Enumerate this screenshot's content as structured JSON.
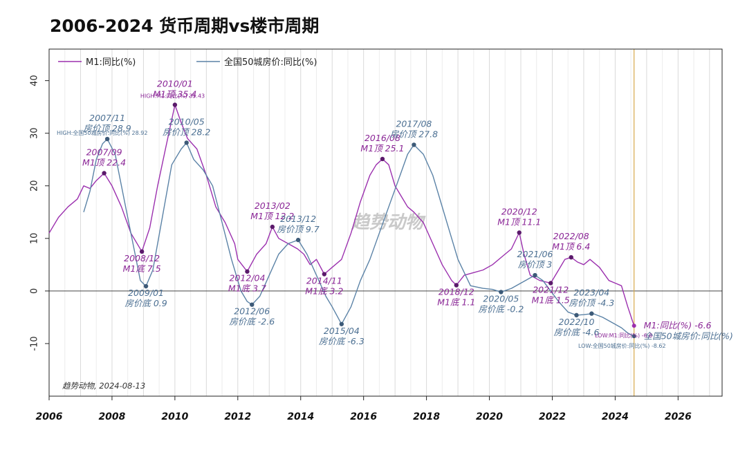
{
  "title": "2006-2024 货币周期vs楼市周期",
  "chart_data": {
    "type": "line",
    "title": "2006-2024 货币周期vs楼市周期",
    "xlim": [
      2006,
      2027.4
    ],
    "ylim": [
      -20,
      46
    ],
    "x_ticks": [
      "2006",
      "2008",
      "2010",
      "2012",
      "2014",
      "2016",
      "2018",
      "2020",
      "2022",
      "2024",
      "2026"
    ],
    "y_ticks": [
      "40",
      "30",
      "20",
      "10",
      "0",
      "-10"
    ],
    "grid": true,
    "legend_position": "top-left",
    "watermark": "趋势动物",
    "footnote": "趋势动物, 2024-08-13",
    "colors": {
      "m1": "#9b2fae",
      "house": "#5a82a6",
      "vline": "#d6a84a",
      "zero": "#444444"
    },
    "vertical_line_x": 2024.6,
    "series": [
      {
        "name": "M1:同比(%)",
        "key": "m1",
        "x": [
          2006.0,
          2006.3,
          2006.6,
          2006.9,
          2007.1,
          2007.3,
          2007.5,
          2007.75,
          2008.0,
          2008.3,
          2008.6,
          2008.95,
          2009.2,
          2009.45,
          2009.7,
          2010.0,
          2010.2,
          2010.4,
          2010.7,
          2011.0,
          2011.3,
          2011.6,
          2011.9,
          2012.0,
          2012.3,
          2012.6,
          2012.9,
          2013.1,
          2013.3,
          2013.6,
          2013.9,
          2014.1,
          2014.3,
          2014.5,
          2014.75,
          2015.0,
          2015.3,
          2015.6,
          2015.9,
          2016.2,
          2016.4,
          2016.6,
          2016.8,
          2017.0,
          2017.2,
          2017.4,
          2017.6,
          2017.9,
          2018.2,
          2018.5,
          2018.8,
          2018.95,
          2019.2,
          2019.5,
          2019.8,
          2020.1,
          2020.4,
          2020.7,
          2020.95,
          2021.1,
          2021.3,
          2021.6,
          2021.95,
          2022.2,
          2022.4,
          2022.6,
          2022.8,
          2023.0,
          2023.2,
          2023.5,
          2023.8,
          2024.0,
          2024.2,
          2024.4,
          2024.6
        ],
        "values": [
          11,
          14,
          16,
          17.5,
          20,
          19.5,
          21,
          22.4,
          20,
          16,
          11,
          7.5,
          12,
          20,
          27,
          35.4,
          32,
          29,
          27,
          22,
          16,
          13,
          9,
          6,
          3.7,
          7,
          9,
          12.2,
          10,
          9,
          8,
          7,
          5,
          6,
          3.2,
          4.5,
          6,
          11,
          17,
          22,
          24,
          25.1,
          24,
          20,
          18,
          16,
          15,
          13,
          9,
          5,
          2,
          1.1,
          3,
          3.5,
          4,
          5,
          6.5,
          8,
          11.1,
          7,
          3,
          2,
          1.5,
          4,
          6,
          6.4,
          5.5,
          5,
          6,
          4.5,
          2,
          1.5,
          1,
          -3,
          -6.6
        ]
      },
      {
        "name": "全国50城房价:同比(%)",
        "key": "house",
        "x": [
          2007.1,
          2007.3,
          2007.5,
          2007.7,
          2007.85,
          2008.1,
          2008.4,
          2008.7,
          2008.9,
          2009.08,
          2009.3,
          2009.6,
          2009.9,
          2010.2,
          2010.37,
          2010.6,
          2010.9,
          2011.2,
          2011.5,
          2011.8,
          2012.1,
          2012.3,
          2012.45,
          2012.7,
          2013.0,
          2013.3,
          2013.6,
          2013.92,
          2014.2,
          2014.5,
          2014.8,
          2015.0,
          2015.3,
          2015.6,
          2015.9,
          2016.2,
          2016.5,
          2016.8,
          2017.1,
          2017.4,
          2017.6,
          2017.9,
          2018.2,
          2018.6,
          2019.0,
          2019.4,
          2019.8,
          2020.1,
          2020.37,
          2020.7,
          2021.0,
          2021.3,
          2021.45,
          2021.7,
          2021.95,
          2022.2,
          2022.5,
          2022.77,
          2023.0,
          2023.3,
          2023.6,
          2023.9,
          2024.2,
          2024.4,
          2024.6
        ],
        "values": [
          15,
          19,
          25,
          28,
          28.9,
          26,
          17,
          8,
          2,
          0.9,
          4,
          14,
          24,
          27,
          28.2,
          25,
          23,
          20,
          13,
          6,
          0,
          -2,
          -2.6,
          -1,
          3,
          7,
          9,
          9.7,
          7,
          3,
          -1,
          -3,
          -6.3,
          -3,
          2,
          6,
          11,
          16,
          21,
          26,
          27.8,
          26,
          22,
          14,
          6,
          1,
          0.5,
          0.3,
          -0.2,
          0.5,
          1.5,
          2.5,
          3,
          2,
          0,
          -2,
          -4,
          -4.6,
          -4.5,
          -4.3,
          -5,
          -6,
          -7,
          -8,
          -8.6
        ]
      }
    ],
    "annotations": [
      {
        "series": "m1",
        "x": 2007.75,
        "y": 22.4,
        "date": "2007/09",
        "label": "M1顶 22.4"
      },
      {
        "series": "m1",
        "x": 2008.95,
        "y": 7.5,
        "date": "2008/12",
        "label": "M1底 7.5"
      },
      {
        "series": "m1",
        "x": 2010.0,
        "y": 35.4,
        "date": "2010/01",
        "label": "M1顶 35.4"
      },
      {
        "series": "m1",
        "x": 2012.3,
        "y": 3.7,
        "date": "2012/04",
        "label": "M1底 3.7"
      },
      {
        "series": "m1",
        "x": 2013.1,
        "y": 12.2,
        "date": "2013/02",
        "label": "M1顶 12.2"
      },
      {
        "series": "m1",
        "x": 2014.75,
        "y": 3.2,
        "date": "2014/11",
        "label": "M1底 3.2"
      },
      {
        "series": "m1",
        "x": 2016.6,
        "y": 25.1,
        "date": "2016/08",
        "label": "M1顶 25.1"
      },
      {
        "series": "m1",
        "x": 2018.95,
        "y": 1.1,
        "date": "2018/12",
        "label": "M1底 1.1"
      },
      {
        "series": "m1",
        "x": 2020.95,
        "y": 11.1,
        "date": "2020/12",
        "label": "M1顶 11.1"
      },
      {
        "series": "m1",
        "x": 2021.95,
        "y": 1.5,
        "date": "2021/12",
        "label": "M1底 1.5"
      },
      {
        "series": "m1",
        "x": 2022.6,
        "y": 6.4,
        "date": "2022/08",
        "label": "M1顶 6.4"
      },
      {
        "series": "house",
        "x": 2007.85,
        "y": 28.9,
        "date": "2007/11",
        "label": "房价顶 28.9"
      },
      {
        "series": "house",
        "x": 2009.08,
        "y": 0.9,
        "date": "2009/01",
        "label": "房价底 0.9"
      },
      {
        "series": "house",
        "x": 2010.37,
        "y": 28.2,
        "date": "2010/05",
        "label": "房价顶 28.2"
      },
      {
        "series": "house",
        "x": 2012.45,
        "y": -2.6,
        "date": "2012/06",
        "label": "房价底 -2.6"
      },
      {
        "series": "house",
        "x": 2013.92,
        "y": 9.7,
        "date": "2013/12",
        "label": "房价顶 9.7"
      },
      {
        "series": "house",
        "x": 2015.3,
        "y": -6.3,
        "date": "2015/04",
        "label": "房价底 -6.3"
      },
      {
        "series": "house",
        "x": 2017.6,
        "y": 27.8,
        "date": "2017/08",
        "label": "房价顶 27.8"
      },
      {
        "series": "house",
        "x": 2020.37,
        "y": -0.2,
        "date": "2020/05",
        "label": "房价底 -0.2"
      },
      {
        "series": "house",
        "x": 2021.45,
        "y": 3,
        "date": "2021/06",
        "label": "房价顶 3"
      },
      {
        "series": "house",
        "x": 2022.77,
        "y": -4.6,
        "date": "2022/10",
        "label": "房价底 -4.6"
      },
      {
        "series": "house",
        "x": 2023.25,
        "y": -4.3,
        "date": "2023/04",
        "label": "房价顶 -4.3"
      }
    ],
    "end_labels": [
      {
        "series": "m1",
        "x": 2024.6,
        "y": -6.6,
        "label": "M1:同比(%) -6.6"
      },
      {
        "series": "house",
        "x": 2024.6,
        "y": -8.6,
        "label": "全国50城房价:同比(%)"
      }
    ],
    "extreme_labels": [
      {
        "series": "m1",
        "x": 2010.0,
        "y": 35.4,
        "label": "HIGH:M1:同比(%) 35.43"
      },
      {
        "series": "house",
        "x": 2007.85,
        "y": 28.9,
        "label": "HIGH:全国50城房价:同比(%) 28.92"
      },
      {
        "series": "m1",
        "x": 2024.6,
        "y": -6.6,
        "label": "LOW:M1:同比(%) -6.6"
      },
      {
        "series": "house",
        "x": 2024.6,
        "y": -8.6,
        "label": "LOW:全国50城房价:同比(%) -8.62"
      }
    ]
  }
}
